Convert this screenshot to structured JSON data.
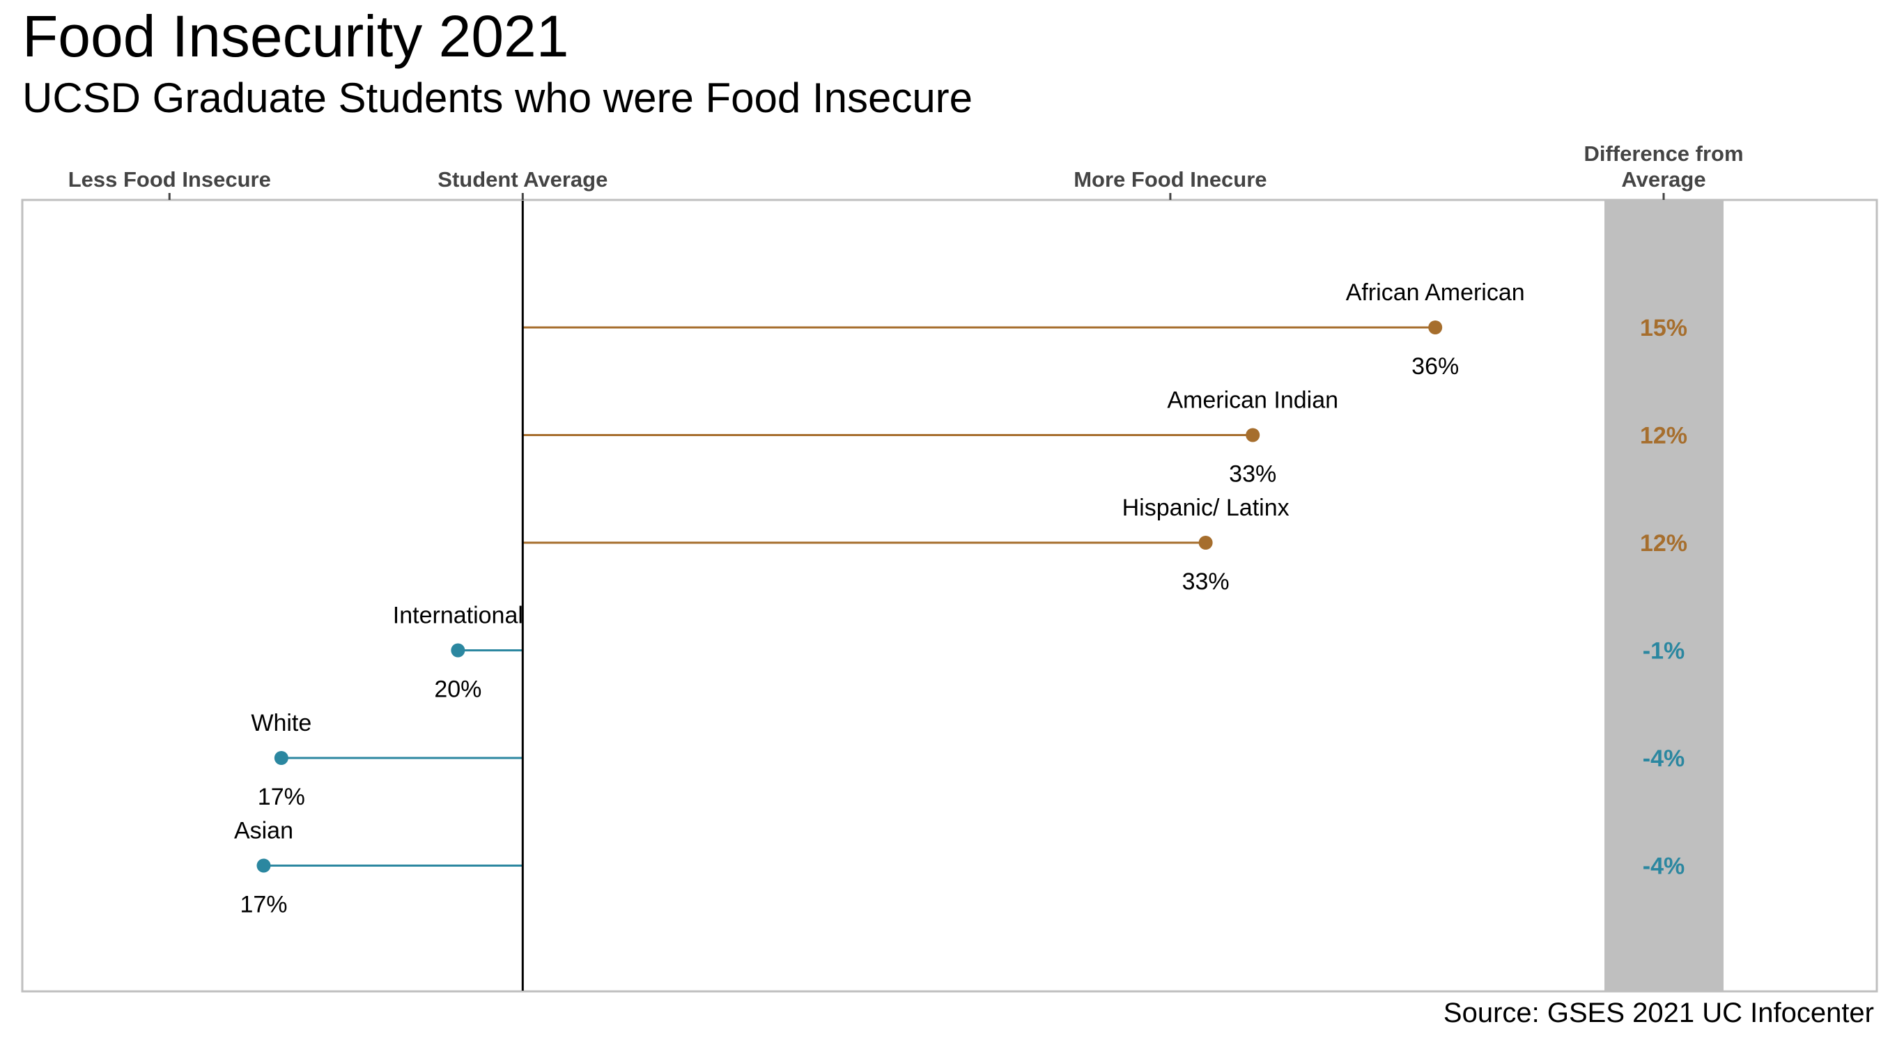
{
  "chart_data": {
    "type": "lollipop",
    "title": "Food Insecurity 2021",
    "subtitle": "UCSD Graduate Students who were Food Insecure",
    "source": "Source: GSES 2021 UC Infocenter",
    "baseline": 21,
    "xlim": [
      12.5,
      44
    ],
    "axis_headers": [
      {
        "label": "Less Food Insecure",
        "x": 15
      },
      {
        "label": "Student Average",
        "x": 21
      },
      {
        "label": "More Food Inecure",
        "x": 32
      }
    ],
    "diff_header": [
      "Difference from",
      "Average"
    ],
    "categories": [
      "African American",
      "American Indian",
      "Hispanic/ Latinx",
      "International",
      "White",
      "Asian"
    ],
    "values": [
      36.5,
      33.4,
      32.6,
      19.9,
      16.9,
      16.6
    ],
    "value_labels": [
      "36%",
      "33%",
      "33%",
      "20%",
      "17%",
      "17%"
    ],
    "differences": [
      "15%",
      "12%",
      "12%",
      "-1%",
      "-4%",
      "-4%"
    ],
    "colors": {
      "above": "#A66E2D",
      "below": "#2B87A0",
      "diff_panel": "#BFBFBF",
      "frame": "#BFBFBF",
      "baseline": "#000000"
    },
    "grid": false
  }
}
